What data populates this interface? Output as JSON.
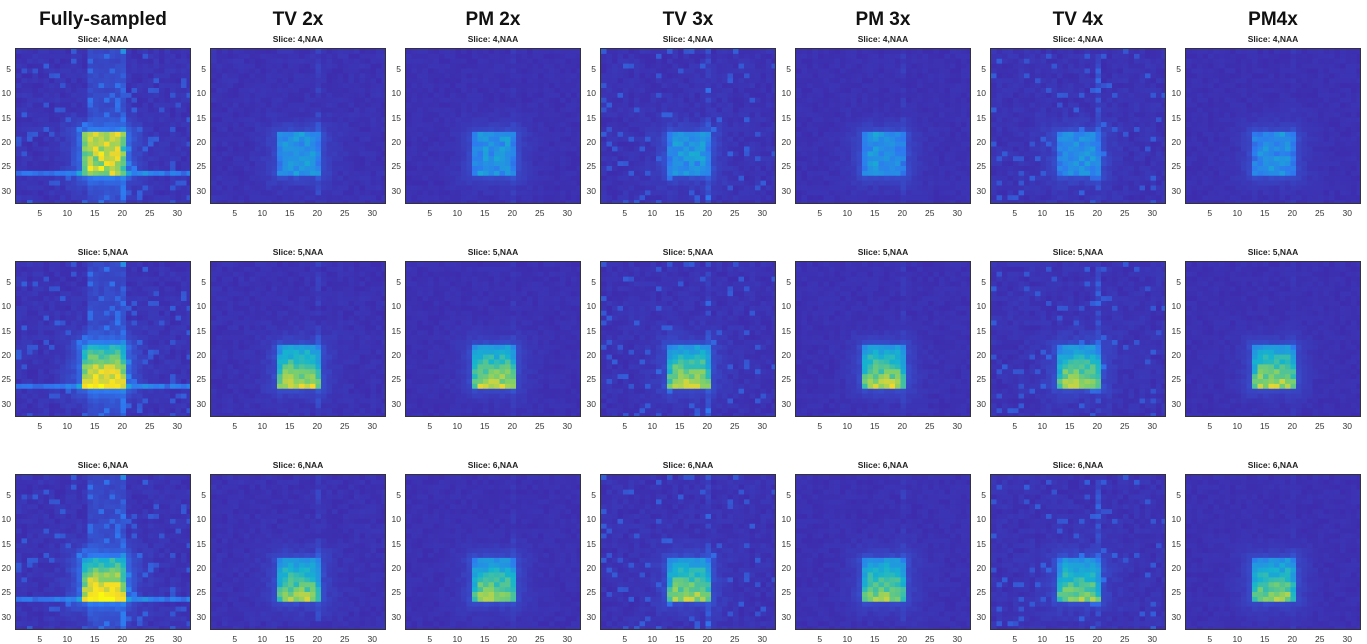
{
  "figure": {
    "columns": [
      "Fully-sampled",
      "TV 2x",
      "PM 2x",
      "TV 3x",
      "PM 3x",
      "TV 4x",
      "PM4x"
    ],
    "row_slices": [
      "Slice: 4,NAA",
      "Slice: 5,NAA",
      "Slice: 6,NAA"
    ]
  },
  "chart_data": {
    "type": "heatmap",
    "grid_size": 32,
    "colormap": [
      "#3e26a8",
      "#2e79f0",
      "#16b4ce",
      "#7dcf6b",
      "#f5d82a",
      "#f9fb0e"
    ],
    "xlim": [
      0.5,
      32.5
    ],
    "ylim": [
      0.5,
      32.5
    ],
    "x_ticks": [
      5,
      10,
      15,
      20,
      25,
      30
    ],
    "y_ticks": [
      5,
      10,
      15,
      20,
      25,
      30
    ],
    "x_tick_labels": [
      "5",
      "10",
      "15",
      "20",
      "25",
      "30"
    ],
    "y_tick_labels": [
      "5",
      "10",
      "15",
      "20",
      "25",
      "30"
    ],
    "roi": {
      "x_range": [
        13,
        20
      ],
      "y_range": [
        18,
        26
      ]
    },
    "peak_intensity": {
      "rows": [
        "Slice: 4,NAA",
        "Slice: 5,NAA",
        "Slice: 6,NAA"
      ],
      "columns": [
        "Fully-sampled",
        "TV 2x",
        "PM 2x",
        "TV 3x",
        "PM 3x",
        "TV 4x",
        "PM4x"
      ],
      "values": [
        [
          0.85,
          0.35,
          0.34,
          0.36,
          0.34,
          0.33,
          0.32
        ],
        [
          0.98,
          0.75,
          0.74,
          0.73,
          0.72,
          0.7,
          0.72
        ],
        [
          0.98,
          0.68,
          0.67,
          0.7,
          0.68,
          0.66,
          0.67
        ]
      ]
    },
    "artifact_strength": [
      0.45,
      0.25,
      0.12,
      0.35,
      0.15,
      0.38,
      0.1
    ],
    "vertical_streak_column": 20,
    "horizontal_streak_row": 26
  }
}
